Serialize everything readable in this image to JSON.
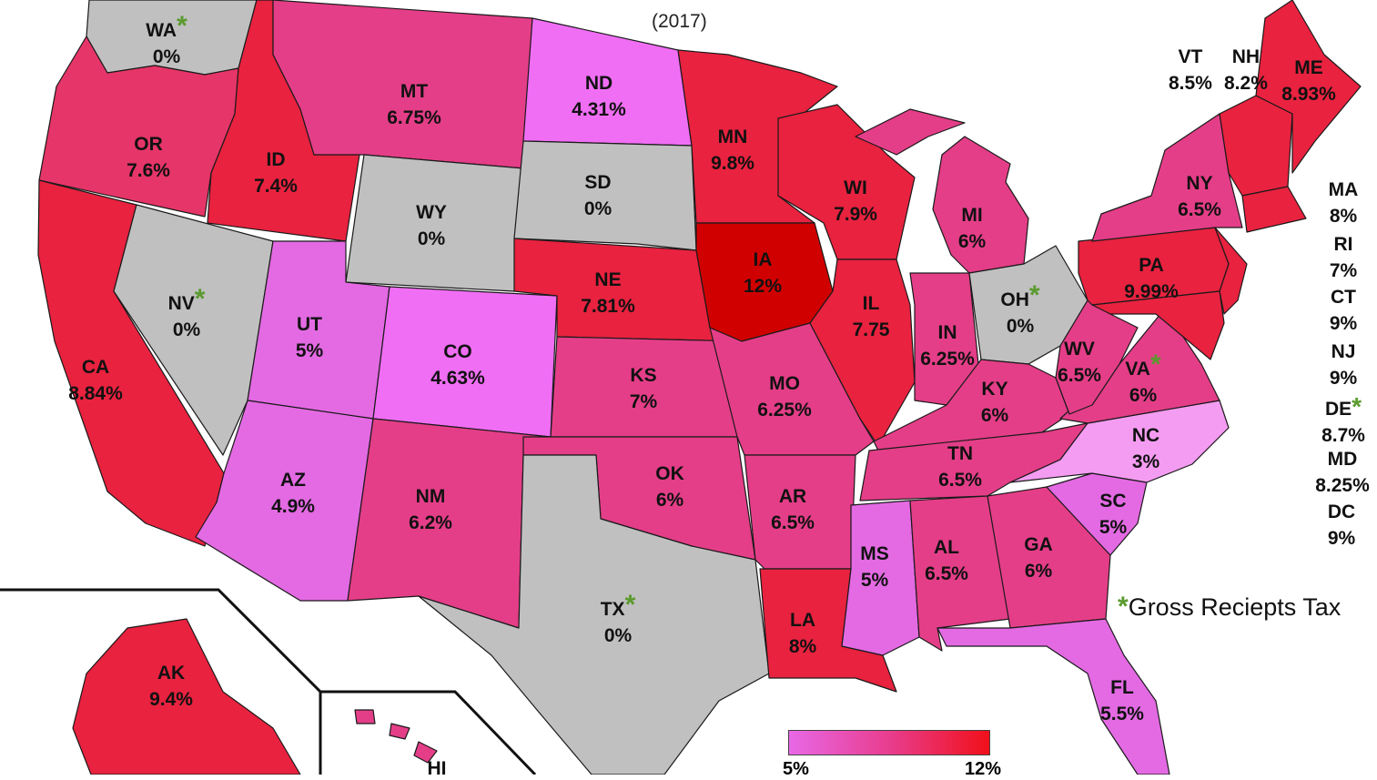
{
  "subtitle": "(2017)",
  "colors": {
    "gray": "#c0c0c0",
    "pink_light": "#f49cf2",
    "violet": "#e36ae3",
    "magenta": "#f06ef4",
    "pink": "#e43e88",
    "rose": "#e63568",
    "red": "#e8223f",
    "crimson": "#d10000",
    "asterisk": "#5a9a2e"
  },
  "states": {
    "WA": {
      "abbr": "WA",
      "rate": "0%",
      "gross_receipts": true
    },
    "OR": {
      "abbr": "OR",
      "rate": "7.6%"
    },
    "CA": {
      "abbr": "CA",
      "rate": "8.84%"
    },
    "ID": {
      "abbr": "ID",
      "rate": "7.4%"
    },
    "NV": {
      "abbr": "NV",
      "rate": "0%",
      "gross_receipts": true
    },
    "MT": {
      "abbr": "MT",
      "rate": "6.75%"
    },
    "WY": {
      "abbr": "WY",
      "rate": "0%"
    },
    "UT": {
      "abbr": "UT",
      "rate": "5%"
    },
    "AZ": {
      "abbr": "AZ",
      "rate": "4.9%"
    },
    "CO": {
      "abbr": "CO",
      "rate": "4.63%"
    },
    "NM": {
      "abbr": "NM",
      "rate": "6.2%"
    },
    "ND": {
      "abbr": "ND",
      "rate": "4.31%"
    },
    "SD": {
      "abbr": "SD",
      "rate": "0%"
    },
    "NE": {
      "abbr": "NE",
      "rate": "7.81%"
    },
    "KS": {
      "abbr": "KS",
      "rate": "7%"
    },
    "OK": {
      "abbr": "OK",
      "rate": "6%"
    },
    "TX": {
      "abbr": "TX",
      "rate": "0%",
      "gross_receipts": true
    },
    "MN": {
      "abbr": "MN",
      "rate": "9.8%"
    },
    "IA": {
      "abbr": "IA",
      "rate": "12%"
    },
    "MO": {
      "abbr": "MO",
      "rate": "6.25%"
    },
    "AR": {
      "abbr": "AR",
      "rate": "6.5%"
    },
    "LA": {
      "abbr": "LA",
      "rate": "8%"
    },
    "WI": {
      "abbr": "WI",
      "rate": "7.9%"
    },
    "IL": {
      "abbr": "IL",
      "rate": "7.75"
    },
    "MI": {
      "abbr": "MI",
      "rate": "6%"
    },
    "IN": {
      "abbr": "IN",
      "rate": "6.25%"
    },
    "OH": {
      "abbr": "OH",
      "rate": "0%",
      "gross_receipts": true
    },
    "KY": {
      "abbr": "KY",
      "rate": "6%"
    },
    "TN": {
      "abbr": "TN",
      "rate": "6.5%"
    },
    "MS": {
      "abbr": "MS",
      "rate": "5%"
    },
    "AL": {
      "abbr": "AL",
      "rate": "6.5%"
    },
    "GA": {
      "abbr": "GA",
      "rate": "6%"
    },
    "FL": {
      "abbr": "FL",
      "rate": "5.5%"
    },
    "SC": {
      "abbr": "SC",
      "rate": "5%"
    },
    "NC": {
      "abbr": "NC",
      "rate": "3%"
    },
    "VA": {
      "abbr": "VA",
      "rate": "6%",
      "gross_receipts": true
    },
    "WV": {
      "abbr": "WV",
      "rate": "6.5%"
    },
    "PA": {
      "abbr": "PA",
      "rate": "9.99%"
    },
    "NY": {
      "abbr": "NY",
      "rate": "6.5%"
    },
    "ME": {
      "abbr": "ME",
      "rate": "8.93%"
    },
    "AK": {
      "abbr": "AK",
      "rate": "9.4%"
    },
    "HI": {
      "abbr": "HI"
    }
  },
  "top_labels": [
    {
      "abbr": "VT",
      "rate": "8.5%"
    },
    {
      "abbr": "NH",
      "rate": "8.2%"
    }
  ],
  "side_list": [
    {
      "abbr": "MA",
      "rate": "8%"
    },
    {
      "abbr": "RI",
      "rate": "7%"
    },
    {
      "abbr": "CT",
      "rate": "9%"
    },
    {
      "abbr": "NJ",
      "rate": "9%"
    },
    {
      "abbr": "DE",
      "rate": "8.7%",
      "gross_receipts": true
    },
    {
      "abbr": "MD",
      "rate": "8.25%"
    },
    {
      "abbr": "DC",
      "rate": "9%"
    }
  ],
  "asterisk": "*",
  "legend": {
    "note": "Gross Reciepts Tax",
    "scale_min": "5%",
    "scale_max": "12%"
  }
}
